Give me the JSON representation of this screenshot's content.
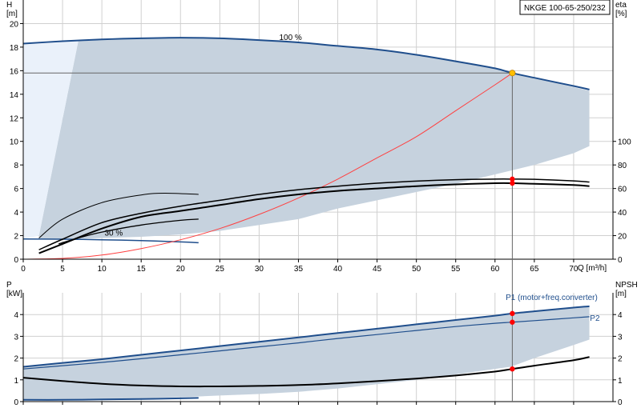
{
  "chart_data": [
    {
      "type": "line",
      "title": "NKGE 100-65-250/232",
      "xlabel": "Q [m³/h]",
      "ylabel": "H\n[m]",
      "y2label": "eta\n[%]",
      "xlim": [
        0,
        75
      ],
      "ylim": [
        0,
        22
      ],
      "y2lim": [
        0,
        100
      ],
      "x_ticks": [
        0,
        5,
        10,
        15,
        20,
        25,
        30,
        35,
        40,
        45,
        50,
        55,
        60,
        65,
        70
      ],
      "x_tick_labels": [
        "0",
        "5",
        "10",
        "15",
        "20",
        "25",
        "30",
        "35",
        "40",
        "45",
        "50",
        "55",
        "60",
        "65",
        "70"
      ],
      "y_ticks": [
        0,
        2,
        4,
        6,
        8,
        10,
        12,
        14,
        16,
        18,
        20
      ],
      "y_tick_labels": [
        "0",
        "2",
        "4",
        "6",
        "8",
        "10",
        "12",
        "14",
        "16",
        "18",
        "20"
      ],
      "y2_ticks": [
        0,
        20,
        40,
        60,
        80,
        100
      ],
      "y2_tick_labels": [
        "0",
        "20",
        "40",
        "60",
        "80",
        "100"
      ],
      "grid": true,
      "annotations": [
        {
          "text": "100 %",
          "x": 34,
          "y": 18.6
        },
        {
          "text": "30 %",
          "x": 11.5,
          "y": 2.0
        }
      ],
      "duty_point": {
        "x": 62.2,
        "y": 15.8,
        "color": "#ffc000"
      },
      "series": [
        {
          "role": "operating-range",
          "color": "#c6d2de",
          "x": [
            2,
            7,
            10,
            15,
            20,
            25,
            30,
            35,
            40,
            45,
            50,
            55,
            60,
            62,
            65,
            70,
            72,
            72,
            70,
            65,
            60,
            55,
            50,
            45,
            40,
            35,
            30,
            25,
            20,
            15,
            10,
            5,
            2
          ],
          "y": [
            2.0,
            18.5,
            18.6,
            18.75,
            18.8,
            18.75,
            18.6,
            18.4,
            18.1,
            17.8,
            17.35,
            16.8,
            16.2,
            15.85,
            15.4,
            14.6,
            14.3,
            9.6,
            9.0,
            8.0,
            7.2,
            6.4,
            5.7,
            5.0,
            4.3,
            3.4,
            2.9,
            2.4,
            2.1,
            1.9,
            1.8,
            1.7,
            1.7
          ]
        },
        {
          "role": "light-region",
          "color": "#eaf1fa",
          "x": [
            0,
            7,
            2,
            0
          ],
          "y": [
            18.3,
            18.5,
            2.0,
            1.7
          ]
        },
        {
          "role": "H-100",
          "color": "#1f4e8c",
          "x": [
            0,
            5,
            10,
            15,
            20,
            25,
            30,
            35,
            40,
            45,
            50,
            55,
            60,
            62.2,
            65,
            70,
            72
          ],
          "y": [
            18.3,
            18.5,
            18.65,
            18.75,
            18.8,
            18.75,
            18.6,
            18.4,
            18.1,
            17.8,
            17.35,
            16.8,
            16.2,
            15.8,
            15.4,
            14.7,
            14.4
          ]
        },
        {
          "role": "H-30",
          "color": "#1f4e8c",
          "x": [
            0,
            5,
            10,
            15,
            20,
            22.3
          ],
          "y": [
            1.72,
            1.7,
            1.65,
            1.58,
            1.47,
            1.4
          ]
        },
        {
          "role": "system-curve",
          "color": "#ff4040",
          "x": [
            0,
            5,
            10,
            15,
            20,
            25,
            30,
            35,
            40,
            45,
            50,
            55,
            60,
            62.2
          ],
          "y": [
            0,
            0.07,
            0.35,
            0.9,
            1.65,
            2.6,
            3.8,
            5.2,
            6.8,
            8.6,
            10.4,
            12.6,
            14.8,
            15.8
          ]
        },
        {
          "role": "eta-max",
          "color": "#000000",
          "x": [
            2,
            5,
            10,
            15,
            18,
            22.3
          ],
          "y": [
            18,
            34,
            48,
            54.5,
            56,
            55
          ]
        },
        {
          "role": "eta-1",
          "color": "#000000",
          "x": [
            2,
            5,
            10,
            15,
            20,
            25,
            30,
            35,
            40,
            45,
            50,
            55,
            60,
            62.2,
            65,
            70,
            72
          ],
          "y": [
            8,
            17,
            31,
            39,
            45,
            50,
            55,
            59,
            62,
            64.5,
            66.3,
            67.5,
            68,
            68,
            67.8,
            66.5,
            65.5
          ]
        },
        {
          "role": "eta-2",
          "color": "#000000",
          "x": [
            2,
            5,
            10,
            15,
            20,
            25,
            30,
            35,
            40,
            45,
            50,
            55,
            60,
            62.2,
            65,
            70,
            72
          ],
          "y": [
            5,
            13,
            26,
            36,
            41,
            46,
            51,
            55,
            58,
            60,
            62,
            63.5,
            64.5,
            64.5,
            64,
            63,
            62
          ]
        },
        {
          "role": "eta-low",
          "color": "#000000",
          "x": [
            4.5,
            7,
            10,
            15,
            20,
            22.3
          ],
          "y": [
            13,
            18,
            23,
            29,
            33,
            34
          ]
        }
      ],
      "markers": [
        {
          "x": 62.2,
          "y2": 68,
          "color": "#ff0000"
        },
        {
          "x": 62.2,
          "y2": 64.5,
          "color": "#ff0000"
        }
      ]
    },
    {
      "type": "line",
      "xlabel": "",
      "ylabel": "P\n[kW]",
      "y2label": "NPSH\n[m]",
      "xlim": [
        0,
        75
      ],
      "ylim": [
        0,
        5
      ],
      "y2lim": [
        0,
        5
      ],
      "y_ticks": [
        0,
        1,
        2,
        3,
        4
      ],
      "y_tick_labels": [
        "0",
        "1",
        "2",
        "3",
        "4"
      ],
      "y2_ticks": [
        0,
        1,
        2,
        3,
        4
      ],
      "y2_tick_labels": [
        "0",
        "1",
        "2",
        "3",
        "4"
      ],
      "grid": true,
      "annotations": [
        {
          "text": "P1 (motor+freq.converter)",
          "x": 67.2,
          "y": 4.66
        },
        {
          "text": "P2",
          "x": 72.7,
          "y": 3.72
        }
      ],
      "series": [
        {
          "role": "operating-range",
          "color": "#c6d2de",
          "x": [
            0,
            7,
            10,
            15,
            20,
            25,
            30,
            35,
            40,
            45,
            50,
            55,
            60,
            65,
            70,
            72,
            72,
            70,
            65,
            62,
            55,
            50,
            45,
            40,
            35,
            30,
            25,
            20,
            15,
            10,
            5,
            0
          ],
          "y": [
            1.6,
            1.85,
            1.95,
            2.15,
            2.35,
            2.55,
            2.75,
            2.95,
            3.15,
            3.35,
            3.55,
            3.75,
            3.95,
            4.15,
            4.32,
            4.38,
            2.85,
            2.6,
            2.0,
            1.6,
            1.25,
            1.0,
            0.8,
            0.6,
            0.45,
            0.35,
            0.28,
            0.2,
            0.15,
            0.12,
            0.1,
            0.08
          ]
        },
        {
          "role": "P1",
          "color": "#1f4e8c",
          "x": [
            0,
            7,
            10,
            15,
            20,
            25,
            30,
            35,
            40,
            45,
            50,
            55,
            60,
            62.2,
            65,
            70,
            72
          ],
          "y": [
            1.6,
            1.85,
            1.95,
            2.15,
            2.35,
            2.55,
            2.75,
            2.95,
            3.15,
            3.35,
            3.55,
            3.75,
            3.95,
            4.05,
            4.15,
            4.32,
            4.38
          ]
        },
        {
          "role": "P2",
          "color": "#1f4e8c",
          "x": [
            0,
            5,
            10,
            15,
            20,
            25,
            30,
            35,
            40,
            45,
            50,
            55,
            60,
            62.2,
            65,
            70,
            72
          ],
          "y": [
            1.5,
            1.65,
            1.8,
            1.97,
            2.15,
            2.33,
            2.52,
            2.7,
            2.9,
            3.08,
            3.27,
            3.45,
            3.6,
            3.65,
            3.72,
            3.85,
            3.9
          ]
        },
        {
          "role": "P-30",
          "color": "#1f4e8c",
          "x": [
            0,
            5,
            10,
            15,
            20,
            22.3
          ],
          "y": [
            0.08,
            0.08,
            0.1,
            0.12,
            0.15,
            0.17
          ]
        }
      ],
      "y2_series": [
        {
          "role": "NPSH",
          "color": "#000000",
          "x": [
            0,
            5,
            10,
            15,
            20,
            25,
            30,
            35,
            40,
            45,
            50,
            55,
            60,
            62.2,
            65,
            70,
            72
          ],
          "y": [
            1.1,
            0.95,
            0.82,
            0.74,
            0.7,
            0.7,
            0.72,
            0.76,
            0.84,
            0.94,
            1.06,
            1.2,
            1.38,
            1.5,
            1.65,
            1.9,
            2.05
          ]
        }
      ],
      "markers": [
        {
          "x": 62.2,
          "y": 4.05,
          "color": "#ff0000"
        },
        {
          "x": 62.2,
          "y": 3.65,
          "color": "#ff0000"
        },
        {
          "x": 62.2,
          "y2": 1.5,
          "color": "#ff0000"
        }
      ]
    }
  ]
}
